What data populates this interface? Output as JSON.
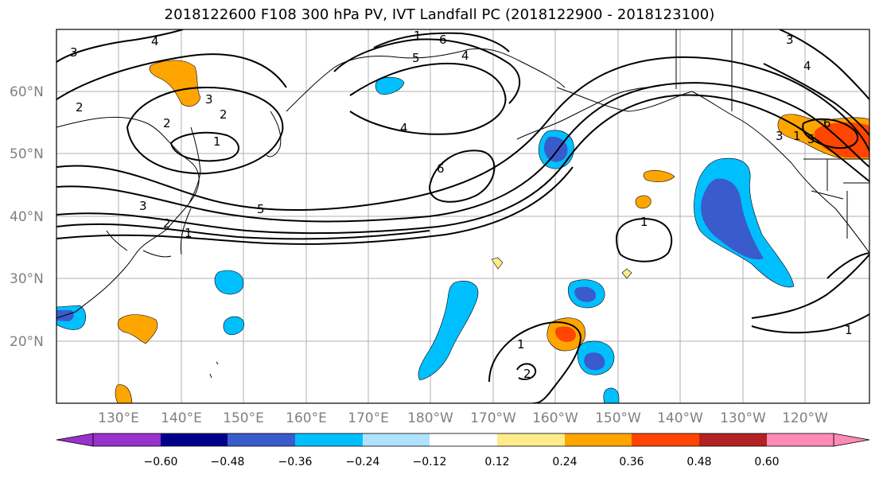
{
  "title": "2018122600 F108 300 hPa PV, IVT Landfall PC (2018122900 - 2018123100)",
  "latitude_labels": [
    "60°N",
    "50°N",
    "40°N",
    "30°N",
    "20°N"
  ],
  "longitude_labels": [
    "130°E",
    "140°E",
    "150°E",
    "160°E",
    "170°E",
    "180°W",
    "170°W",
    "160°W",
    "150°W",
    "140°W",
    "130°W",
    "120°W"
  ],
  "colorbar": {
    "colors": [
      "#9932CC",
      "#00008B",
      "#3A5BCC",
      "#00BFFF",
      "#B0E2FF",
      "#FFFFFF",
      "#FFEB8A",
      "#FFA500",
      "#FF4500",
      "#B22222",
      "#FF8AB5"
    ],
    "tick_labels": [
      "−0.60",
      "−0.48",
      "−0.36",
      "−0.24",
      "−0.12",
      "0.12",
      "0.24",
      "0.36",
      "0.48",
      "0.60"
    ]
  },
  "contour_labels": [
    "4",
    "3",
    "2",
    "1",
    "3",
    "2",
    "1",
    "5",
    "6",
    "4",
    "5",
    "6",
    "4",
    "3",
    "2",
    "1",
    "2",
    "3",
    "4",
    "6",
    "5",
    "1",
    "1",
    "1",
    "2",
    "3",
    "1"
  ],
  "colors": {
    "contour": "#000000",
    "grid": "#b0b0b0",
    "coast": "#000000"
  }
}
